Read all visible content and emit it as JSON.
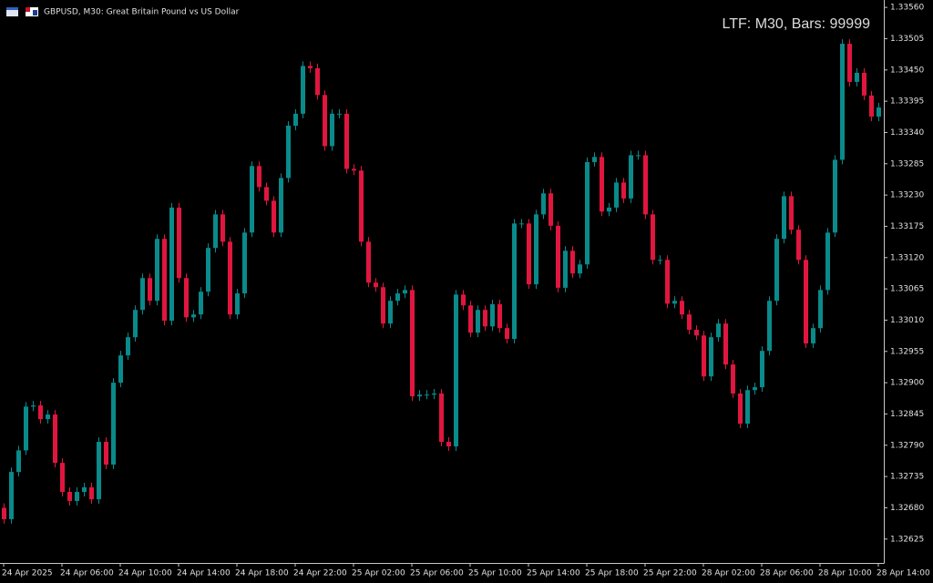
{
  "chart_data": {
    "type": "candlestick",
    "title": "GBPUSD, M30:  Great Britain Pound vs US Dollar",
    "annotation": "LTF: M30, Bars: 99999",
    "up_color": "#0a8a8a",
    "down_color": "#e0163f",
    "categories": [
      "24 Apr 2025",
      null,
      null,
      null,
      null,
      null,
      null,
      null,
      "24 Apr 06:00",
      null,
      null,
      null,
      null,
      null,
      null,
      null,
      "24 Apr 10:00",
      null,
      null,
      null,
      null,
      null,
      null,
      null,
      "24 Apr 14:00",
      null,
      null,
      null,
      null,
      null,
      null,
      null,
      "24 Apr 18:00",
      null,
      null,
      null,
      null,
      null,
      null,
      null,
      "24 Apr 22:00",
      null,
      null,
      null,
      null,
      null,
      null,
      null,
      "25 Apr 02:00",
      null,
      null,
      null,
      null,
      null,
      null,
      null,
      "25 Apr 06:00",
      null,
      null,
      null,
      null,
      null,
      null,
      null,
      "25 Apr 10:00",
      null,
      null,
      null,
      null,
      null,
      null,
      null,
      "25 Apr 14:00",
      null,
      null,
      null,
      null,
      null,
      null,
      null,
      "25 Apr 18:00",
      null,
      null,
      null,
      null,
      null,
      null,
      null,
      "25 Apr 22:00",
      null,
      null,
      null,
      null,
      null,
      null,
      null,
      "28 Apr 02:00",
      null,
      null,
      null,
      null,
      null,
      null,
      null,
      "28 Apr 06:00",
      null,
      null,
      null,
      null,
      null,
      null,
      null,
      "28 Apr 10:00",
      null,
      null,
      null,
      null,
      null,
      null,
      null,
      "28 Apr 14:00"
    ],
    "open": [
      1.3268,
      1.3266,
      1.32743,
      1.32781,
      1.32858,
      1.3286,
      1.32836,
      1.32844,
      1.32759,
      1.32708,
      1.32692,
      1.32708,
      1.32716,
      1.32695,
      1.32796,
      1.32756,
      1.329,
      1.32948,
      1.3298,
      1.33028,
      1.33084,
      1.33044,
      1.33153,
      1.33009,
      1.33208,
      1.33084,
      1.33015,
      1.3302,
      1.3306,
      1.33137,
      1.33196,
      1.33148,
      1.3302,
      1.33057,
      1.33164,
      1.33281,
      1.33244,
      1.3322,
      1.33164,
      1.3326,
      1.33352,
      1.33373,
      1.33457,
      1.33453,
      1.33406,
      1.33316,
      1.33373,
      1.33373,
      1.33276,
      1.33273,
      1.33148,
      1.33076,
      1.33068,
      1.33004,
      1.33044,
      1.33057,
      1.33063,
      1.32876,
      1.32879,
      1.32879,
      1.32881,
      1.32796,
      1.32788,
      1.33055,
      1.33036,
      1.32988,
      1.33028,
      1.32999,
      1.33038,
      1.32996,
      1.32977,
      1.3318,
      1.3318,
      1.33073,
      1.33196,
      1.33233,
      1.33176,
      1.33067,
      1.33132,
      1.33092,
      1.33108,
      1.33288,
      1.33297,
      1.33201,
      1.33208,
      1.33252,
      1.33224,
      1.333,
      1.333,
      1.33196,
      1.33116,
      1.33116,
      1.33039,
      1.33044,
      1.3302,
      1.32993,
      1.32983,
      1.32911,
      1.3298,
      1.33004,
      1.32932,
      1.32881,
      1.32828,
      1.32887,
      1.32892,
      1.32956,
      1.33044,
      1.33153,
      1.33228,
      1.33169,
      1.33116,
      1.32969,
      1.32996,
      1.33063,
      1.33164,
      1.33292,
      1.33496,
      1.33429,
      1.33445,
      1.33405,
      1.33368
    ],
    "high": [
      1.32688,
      1.32751,
      1.32789,
      1.32866,
      1.32868,
      1.32868,
      1.32852,
      1.32852,
      1.32767,
      1.32716,
      1.32716,
      1.32724,
      1.32724,
      1.32804,
      1.32804,
      1.32908,
      1.32956,
      1.32988,
      1.33036,
      1.33092,
      1.33092,
      1.33161,
      1.33161,
      1.33216,
      1.33216,
      1.33092,
      1.33028,
      1.33068,
      1.33145,
      1.33204,
      1.33204,
      1.33156,
      1.33065,
      1.33172,
      1.33289,
      1.33289,
      1.33252,
      1.33228,
      1.33268,
      1.3336,
      1.33381,
      1.33465,
      1.33465,
      1.33461,
      1.33414,
      1.33381,
      1.33381,
      1.33381,
      1.33284,
      1.33281,
      1.33156,
      1.33084,
      1.33076,
      1.33052,
      1.33065,
      1.33071,
      1.33071,
      1.32887,
      1.32887,
      1.32889,
      1.32889,
      1.32804,
      1.33063,
      1.33063,
      1.33044,
      1.33036,
      1.33036,
      1.33046,
      1.33046,
      1.33004,
      1.33188,
      1.33188,
      1.33188,
      1.33204,
      1.33241,
      1.33241,
      1.33184,
      1.3314,
      1.3314,
      1.33116,
      1.33296,
      1.33305,
      1.33305,
      1.33216,
      1.3326,
      1.3326,
      1.33308,
      1.33308,
      1.33308,
      1.33204,
      1.33124,
      1.33124,
      1.33052,
      1.33052,
      1.33028,
      1.33001,
      1.32991,
      1.32988,
      1.33012,
      1.33012,
      1.3294,
      1.32889,
      1.32895,
      1.329,
      1.32964,
      1.33052,
      1.33161,
      1.33236,
      1.33236,
      1.33177,
      1.33124,
      1.33004,
      1.33071,
      1.33172,
      1.333,
      1.33504,
      1.33504,
      1.33453,
      1.33453,
      1.33413,
      1.33392
    ],
    "low": [
      1.32652,
      1.32652,
      1.32735,
      1.32773,
      1.3285,
      1.32828,
      1.32828,
      1.32751,
      1.327,
      1.32684,
      1.32684,
      1.327,
      1.32687,
      1.32687,
      1.32748,
      1.32748,
      1.32892,
      1.3294,
      1.32972,
      1.3302,
      1.33036,
      1.33036,
      1.33001,
      1.33001,
      1.33076,
      1.33007,
      1.33007,
      1.33012,
      1.33052,
      1.33129,
      1.3314,
      1.33012,
      1.33012,
      1.33049,
      1.33156,
      1.33236,
      1.33212,
      1.33156,
      1.33156,
      1.33252,
      1.33344,
      1.33365,
      1.33445,
      1.33398,
      1.33308,
      1.33308,
      1.33365,
      1.33268,
      1.33265,
      1.3314,
      1.33068,
      1.3306,
      1.32996,
      1.32996,
      1.33036,
      1.33049,
      1.32868,
      1.32868,
      1.32871,
      1.32871,
      1.32788,
      1.3278,
      1.3278,
      1.33028,
      1.3298,
      1.3298,
      1.32991,
      1.32991,
      1.32988,
      1.32969,
      1.32969,
      1.33172,
      1.33065,
      1.33065,
      1.33188,
      1.33168,
      1.33059,
      1.33059,
      1.33084,
      1.33084,
      1.331,
      1.3328,
      1.33193,
      1.33193,
      1.332,
      1.33216,
      1.33216,
      1.33292,
      1.33188,
      1.33108,
      1.33108,
      1.33031,
      1.33031,
      1.33012,
      1.32985,
      1.32975,
      1.32903,
      1.32903,
      1.32972,
      1.32924,
      1.32873,
      1.3282,
      1.3282,
      1.32879,
      1.32884,
      1.32948,
      1.33036,
      1.33145,
      1.33161,
      1.33108,
      1.32961,
      1.32961,
      1.32988,
      1.33055,
      1.33156,
      1.33284,
      1.33421,
      1.33421,
      1.33397,
      1.3336,
      1.3336
    ],
    "close": [
      1.3266,
      1.32743,
      1.32781,
      1.32858,
      1.3286,
      1.32836,
      1.32844,
      1.32759,
      1.32708,
      1.32692,
      1.32708,
      1.32716,
      1.32695,
      1.32796,
      1.32756,
      1.329,
      1.32948,
      1.3298,
      1.33028,
      1.33084,
      1.33044,
      1.33153,
      1.33009,
      1.33208,
      1.33084,
      1.33015,
      1.3302,
      1.3306,
      1.33137,
      1.33196,
      1.33148,
      1.3302,
      1.33057,
      1.33164,
      1.33281,
      1.33244,
      1.3322,
      1.33164,
      1.3326,
      1.33352,
      1.33373,
      1.33457,
      1.33453,
      1.33406,
      1.33316,
      1.33373,
      1.33373,
      1.33276,
      1.33273,
      1.33148,
      1.33076,
      1.33068,
      1.33004,
      1.33044,
      1.33057,
      1.33063,
      1.32876,
      1.32879,
      1.32879,
      1.32881,
      1.32796,
      1.32788,
      1.33055,
      1.33036,
      1.32988,
      1.33028,
      1.32999,
      1.33038,
      1.32996,
      1.32977,
      1.3318,
      1.3318,
      1.33073,
      1.33196,
      1.33233,
      1.33176,
      1.33067,
      1.33132,
      1.33092,
      1.33108,
      1.33288,
      1.33297,
      1.33201,
      1.33208,
      1.33252,
      1.33224,
      1.333,
      1.333,
      1.33196,
      1.33116,
      1.33116,
      1.33039,
      1.33044,
      1.3302,
      1.32993,
      1.32983,
      1.32911,
      1.3298,
      1.33004,
      1.32932,
      1.32881,
      1.32828,
      1.32887,
      1.32892,
      1.32956,
      1.33044,
      1.33153,
      1.33228,
      1.33169,
      1.33116,
      1.32969,
      1.32996,
      1.33063,
      1.33164,
      1.33292,
      1.33496,
      1.33429,
      1.33445,
      1.33405,
      1.33368,
      1.33384
    ],
    "ylim": [
      1.32583,
      1.33573
    ],
    "yticks": [
      {
        "value": 1.3356,
        "label": "1.33560"
      },
      1.33505,
      {
        "value": 1.3345,
        "label": "1.33450"
      },
      1.33395,
      {
        "value": 1.3334,
        "label": "1.33340"
      },
      1.33285,
      {
        "value": 1.3323,
        "label": "1.33230"
      },
      1.33175,
      {
        "value": 1.3312,
        "label": "1.33120"
      },
      1.33065,
      {
        "value": 1.3301,
        "label": "1.33010"
      },
      1.32955,
      {
        "value": 1.329,
        "label": "1.32900"
      },
      1.32845,
      {
        "value": 1.3279,
        "label": "1.32790"
      },
      1.32735,
      {
        "value": 1.3268,
        "label": "1.32680"
      },
      1.32625
    ]
  }
}
